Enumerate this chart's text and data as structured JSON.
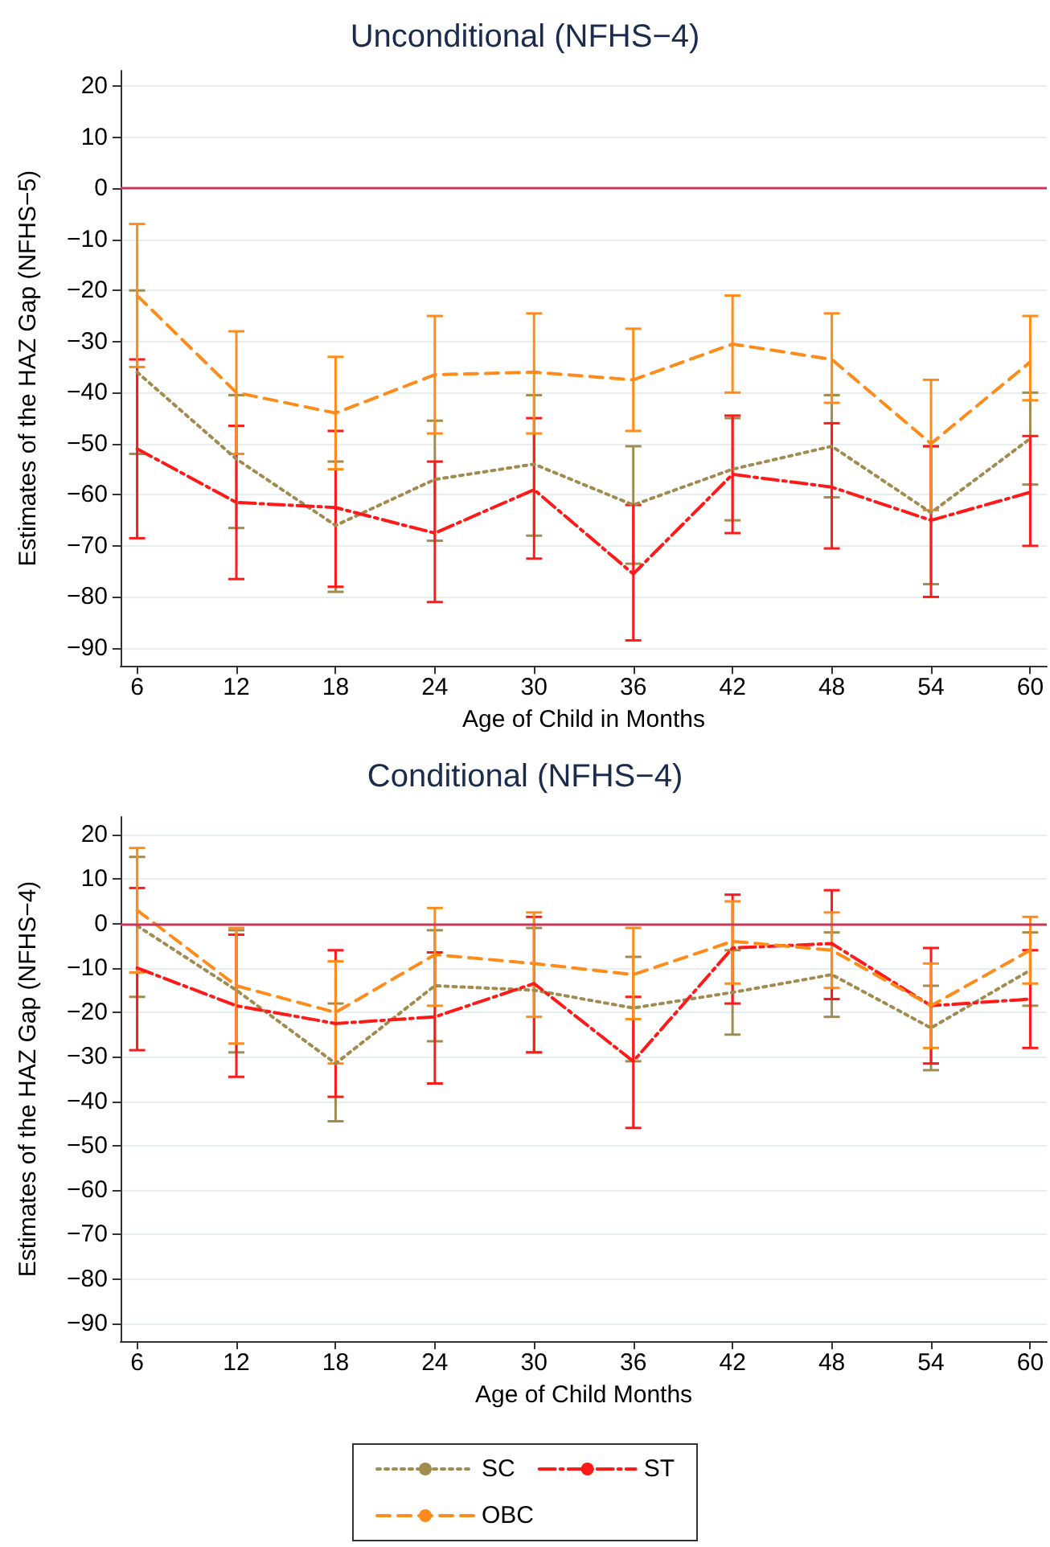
{
  "chart_data": [
    {
      "type": "line",
      "title": "Unconditional (NFHS−4)",
      "xlabel": "Age of Child in Months",
      "ylabel": "Estimates of the HAZ Gap (NFHS−5)",
      "x": [
        6,
        12,
        18,
        24,
        30,
        36,
        42,
        48,
        54,
        60
      ],
      "xlim": [
        5,
        61
      ],
      "xticks": [
        6,
        12,
        18,
        24,
        30,
        36,
        42,
        48,
        54,
        60
      ],
      "ylim": [
        -93.5,
        23
      ],
      "yticks": [
        -90,
        -80,
        -70,
        -60,
        -50,
        -40,
        -30,
        -20,
        -10,
        0,
        10,
        20
      ],
      "grid": "y",
      "legend": false,
      "marker": "none",
      "ref_lines": [
        {
          "axis": "y",
          "value": 0,
          "color": "#c8385a"
        }
      ],
      "series": [
        {
          "color": "#a08c50",
          "line_style": "dotted",
          "values": [
            -36,
            -53,
            -66,
            -57,
            -54,
            -62,
            -55,
            -50.5,
            -63.5,
            -49
          ],
          "errors": [
            [
              -52,
              -20
            ],
            [
              -66.5,
              -40.5
            ],
            [
              -79,
              -53.5
            ],
            [
              -69,
              -45.5
            ],
            [
              -68,
              -40.5
            ],
            [
              -73.5,
              -50.5
            ],
            [
              -65,
              -45
            ],
            [
              -60.5,
              -40.5
            ],
            [
              -77.5,
              -50.5
            ],
            [
              -58,
              -40
            ]
          ]
        },
        {
          "color": "#ff1a1a",
          "line_style": "dashdot",
          "values": [
            -51,
            -61.5,
            -62.5,
            -67.5,
            -59,
            -75.5,
            -56,
            -58.5,
            -65,
            -59.5
          ],
          "errors": [
            [
              -68.5,
              -33.5
            ],
            [
              -76.5,
              -46.5
            ],
            [
              -78,
              -47.5
            ],
            [
              -81,
              -53.5
            ],
            [
              -72.5,
              -45
            ],
            [
              -88.5,
              -62
            ],
            [
              -67.5,
              -44.5
            ],
            [
              -70.5,
              -46
            ],
            [
              -80,
              -50.5
            ],
            [
              -70,
              -48.5
            ]
          ]
        },
        {
          "color": "#ff8c1a",
          "line_style": "dashed",
          "values": [
            -21,
            -40,
            -44,
            -36.5,
            -36,
            -37.5,
            -30.5,
            -33.5,
            -50,
            -34
          ],
          "errors": [
            [
              -35,
              -7
            ],
            [
              -52,
              -28
            ],
            [
              -55,
              -33
            ],
            [
              -48,
              -25
            ],
            [
              -48,
              -24.5
            ],
            [
              -47.5,
              -27.5
            ],
            [
              -40,
              -21
            ],
            [
              -42,
              -24.5
            ],
            [
              -63,
              -37.5
            ],
            [
              -41.5,
              -25
            ]
          ]
        }
      ]
    },
    {
      "type": "line",
      "title": "Conditional (NFHS−4)",
      "xlabel": "Age of Child Months",
      "ylabel": "Estimates of the HAZ Gap (NFHS−4)",
      "x": [
        6,
        12,
        18,
        24,
        30,
        36,
        42,
        48,
        54,
        60
      ],
      "xlim": [
        5,
        61
      ],
      "xticks": [
        6,
        12,
        18,
        24,
        30,
        36,
        42,
        48,
        54,
        60
      ],
      "ylim": [
        -94,
        24
      ],
      "yticks": [
        -90,
        -80,
        -70,
        -60,
        -50,
        -40,
        -30,
        -20,
        -10,
        0,
        10,
        20
      ],
      "grid": "y",
      "legend": "bottom",
      "marker": "none",
      "ref_lines": [
        {
          "axis": "y",
          "value": 0,
          "color": "#c8385a"
        }
      ],
      "series": [
        {
          "name": "SC",
          "color": "#a08c50",
          "line_style": "dotted",
          "values": [
            -0.5,
            -15,
            -31.5,
            -14,
            -15,
            -19,
            -15.5,
            -11.5,
            -23.5,
            -10.5
          ],
          "errors": [
            [
              -16.5,
              15
            ],
            [
              -29,
              -1.5
            ],
            [
              -44.5,
              -18
            ],
            [
              -26.5,
              -1.5
            ],
            [
              -29,
              -1
            ],
            [
              -31,
              -7.5
            ],
            [
              -25,
              -6
            ],
            [
              -21,
              -2
            ],
            [
              -33,
              -14
            ],
            [
              -18.5,
              -2
            ]
          ]
        },
        {
          "name": "ST",
          "color": "#ff1a1a",
          "line_style": "dashdot",
          "values": [
            -10,
            -18.5,
            -22.5,
            -21,
            -13.5,
            -31,
            -5.5,
            -4.5,
            -18.5,
            -17
          ],
          "errors": [
            [
              -28.5,
              8
            ],
            [
              -34.5,
              -2.5
            ],
            [
              -39,
              -6
            ],
            [
              -36,
              -6.5
            ],
            [
              -29,
              1.5
            ],
            [
              -46,
              -16.5
            ],
            [
              -18,
              6.5
            ],
            [
              -17,
              7.5
            ],
            [
              -31.5,
              -5.5
            ],
            [
              -28,
              -6
            ]
          ]
        },
        {
          "name": "OBC",
          "color": "#ff8c1a",
          "line_style": "dashed",
          "values": [
            3,
            -14,
            -20,
            -7,
            -9,
            -11.5,
            -4,
            -6,
            -18.5,
            -6
          ],
          "errors": [
            [
              -11,
              17
            ],
            [
              -27,
              -1
            ],
            [
              -31.5,
              -8.5
            ],
            [
              -18.5,
              3.5
            ],
            [
              -21,
              2.5
            ],
            [
              -21.5,
              -1
            ],
            [
              -13.5,
              5
            ],
            [
              -14.5,
              2.5
            ],
            [
              -28,
              -9
            ],
            [
              -13.5,
              1.5
            ]
          ]
        }
      ]
    }
  ]
}
